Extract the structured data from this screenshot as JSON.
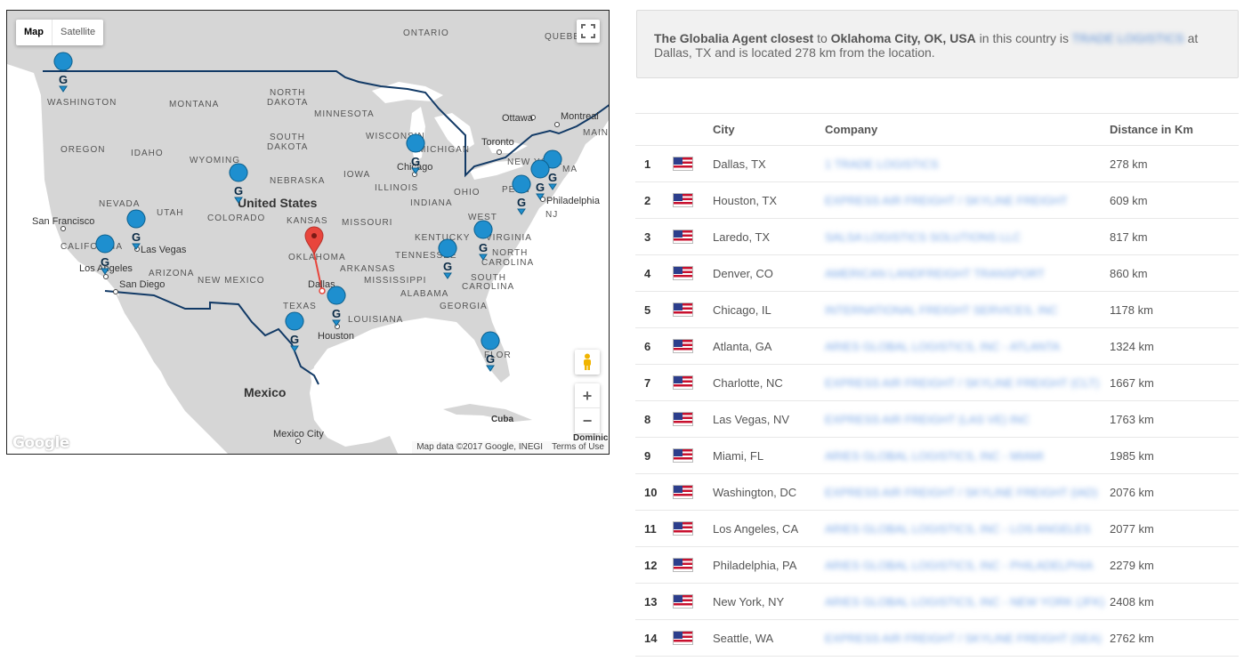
{
  "map": {
    "type_buttons": [
      "Map",
      "Satellite"
    ],
    "footer_data": "Map data ©2017 Google, INEGI",
    "footer_terms": "Terms of Use",
    "logo": "Google",
    "zoom_in": "+",
    "zoom_out": "−",
    "labels": {
      "ontario": "ONTARIO",
      "quebec": "QUEBE",
      "washington": "WASHINGTON",
      "montana": "MONTANA",
      "north_dakota_1": "NORTH",
      "north_dakota_2": "DAKOTA",
      "minnesota": "MINNESOTA",
      "ottawa": "Ottawa",
      "montreal": "Montreal",
      "maine": "MAIN",
      "oregon": "OREGON",
      "idaho": "IDAHO",
      "south_dakota_1": "SOUTH",
      "south_dakota_2": "DAKOTA",
      "wisconsin": "WISCONSIN",
      "michigan": "MICHIGAN",
      "toronto": "Toronto",
      "wyoming": "WYOMING",
      "new_york_state": "NEW YORK",
      "massachusetts": "MA",
      "nebraska": "NEBRASKA",
      "iowa": "IOWA",
      "chicago": "Chicago",
      "illinois": "ILLINOIS",
      "ohio": "OHIO",
      "penn": "PENN",
      "philadelphia": "Philadelphia",
      "nj": "NJ",
      "nevada": "NEVADA",
      "utah": "UTAH",
      "united_states": "United States",
      "indiana": "INDIANA",
      "san_francisco": "San Francisco",
      "colorado": "COLORADO",
      "kansas": "KANSAS",
      "missouri": "MISSOURI",
      "west_virginia_1": "WEST",
      "virginia": "VIRGINIA",
      "kentucky": "KENTUCKY",
      "california": "CALIFORNIA",
      "las_vegas": "Las Vegas",
      "oklahoma": "OKLAHOMA",
      "tennessee": "TENNESSEE",
      "north_carolina": "NORTH",
      "carolina": "CAROLINA",
      "los_angeles": "Los Angeles",
      "arizona": "ARIZONA",
      "arkansas": "ARKANSAS",
      "san_diego": "San Diego",
      "new_mexico": "NEW MEXICO",
      "mississippi": "MISSISSIPPI",
      "south_carolina_1": "SOUTH",
      "south_carolina_2": "CAROLINA",
      "dallas": "Dallas",
      "alabama": "ALABAMA",
      "georgia": "GEORGIA",
      "texas": "TEXAS",
      "louisiana": "LOUISIANA",
      "houston": "Houston",
      "florida": "FLOR",
      "mexico": "Mexico",
      "cuba": "Cuba",
      "mexico_city": "Mexico City",
      "dominican": "Dominic"
    }
  },
  "info": {
    "lead": "The Globalia Agent closest",
    "to": " to ",
    "location": "Oklahoma City, OK, USA",
    "middle": " in this country is ",
    "agent": "TRADE LOGISTICS",
    "tail": " at Dallas, TX and is located 278 km from the location."
  },
  "table": {
    "headers": [
      "",
      "",
      "City",
      "Company",
      "Distance in Km"
    ],
    "rows": [
      {
        "rank": "1",
        "city": "Dallas, TX",
        "company": "1 TRADE LOGISTICS",
        "distance": "278 km"
      },
      {
        "rank": "2",
        "city": "Houston, TX",
        "company": "EXPRESS AIR FREIGHT / SKYLINE FREIGHT",
        "distance": "609 km"
      },
      {
        "rank": "3",
        "city": "Laredo, TX",
        "company": "SALSA LOGISTICS SOLUTIONS LLC",
        "distance": "817 km"
      },
      {
        "rank": "4",
        "city": "Denver, CO",
        "company": "AMERICAN LANDFREIGHT TRANSPORT",
        "distance": "860 km"
      },
      {
        "rank": "5",
        "city": "Chicago, IL",
        "company": "INTERNATIONAL FREIGHT SERVICES, INC",
        "distance": "1178 km"
      },
      {
        "rank": "6",
        "city": "Atlanta, GA",
        "company": "ARIES GLOBAL LOGISTICS, INC - ATLANTA",
        "distance": "1324 km"
      },
      {
        "rank": "7",
        "city": "Charlotte, NC",
        "company": "EXPRESS AIR FREIGHT / SKYLINE FREIGHT (CLT)",
        "distance": "1667 km"
      },
      {
        "rank": "8",
        "city": "Las Vegas, NV",
        "company": "EXPRESS AIR FREIGHT (LAS VE) INC",
        "distance": "1763 km"
      },
      {
        "rank": "9",
        "city": "Miami, FL",
        "company": "ARIES GLOBAL LOGISTICS, INC - MIAMI",
        "distance": "1985 km"
      },
      {
        "rank": "10",
        "city": "Washington, DC",
        "company": "EXPRESS AIR FREIGHT / SKYLINE FREIGHT (IAD)",
        "distance": "2076 km"
      },
      {
        "rank": "11",
        "city": "Los Angeles, CA",
        "company": "ARIES GLOBAL LOGISTICS, INC - LOS ANGELES",
        "distance": "2077 km"
      },
      {
        "rank": "12",
        "city": "Philadelphia, PA",
        "company": "ARIES GLOBAL LOGISTICS, INC - PHILADELPHIA",
        "distance": "2279 km"
      },
      {
        "rank": "13",
        "city": "New York, NY",
        "company": "ARIES GLOBAL LOGISTICS, INC - NEW YORK (JFK)",
        "distance": "2408 km"
      },
      {
        "rank": "14",
        "city": "Seattle, WA",
        "company": "EXPRESS AIR FREIGHT / SKYLINE FREIGHT (SEA)",
        "distance": "2762 km"
      }
    ]
  },
  "colors": {
    "marker": "#1e8fcf",
    "origin_pin": "#e8453c",
    "route": "#e8453c",
    "border": "#123a66",
    "land": "#d6d6d6",
    "water": "#ffffff"
  }
}
